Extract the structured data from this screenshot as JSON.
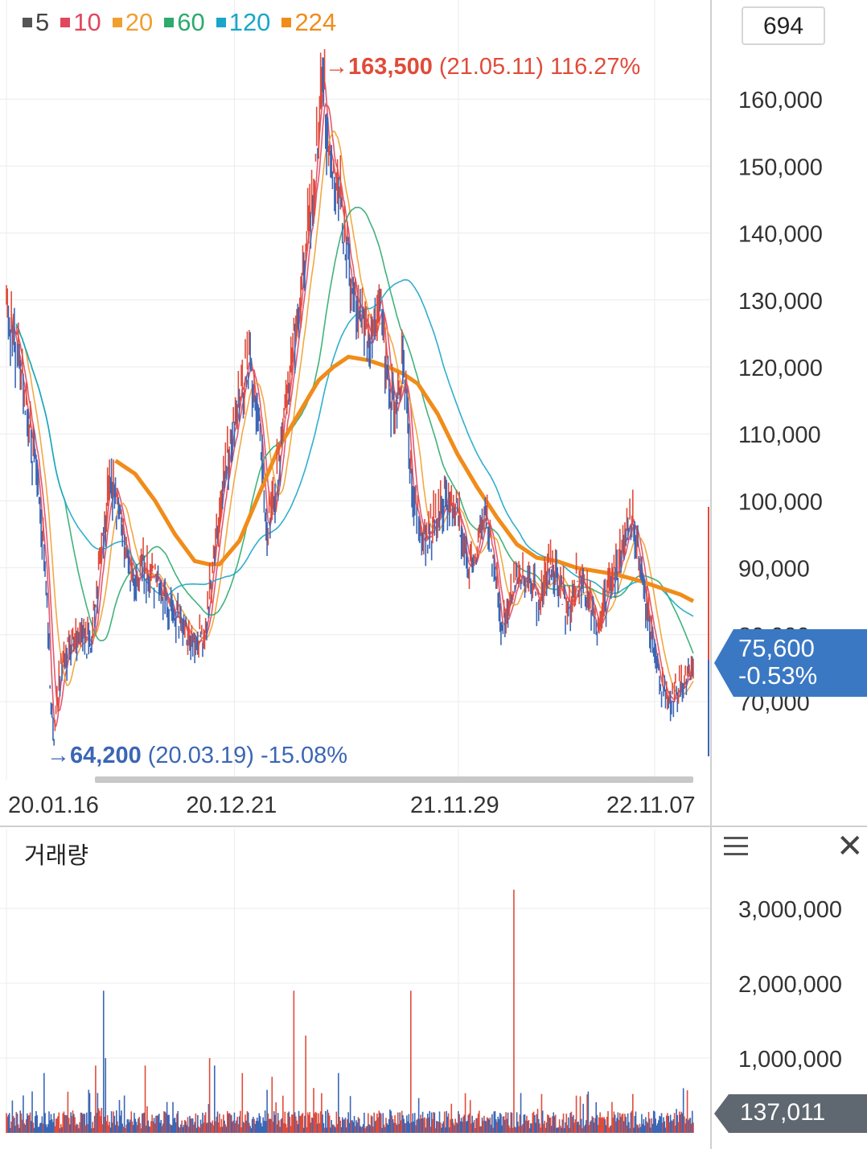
{
  "legend": [
    {
      "label": "5",
      "color": "#555555"
    },
    {
      "label": "10",
      "color": "#e0475e"
    },
    {
      "label": "20",
      "color": "#f0a030"
    },
    {
      "label": "60",
      "color": "#2daa6e"
    },
    {
      "label": "120",
      "color": "#1aa6c8"
    },
    {
      "label": "224",
      "color": "#f08c1a"
    }
  ],
  "period_count": "694",
  "high_marker": {
    "price": "163,500",
    "date": "(21.05.11)",
    "pct": "116.27%"
  },
  "low_marker": {
    "price": "64,200",
    "date": "(20.03.19)",
    "pct": "-15.08%"
  },
  "current_price": {
    "value": "75,600",
    "change": "-0.53%"
  },
  "volume_title": "거래량",
  "current_volume": "137,011",
  "chart_data": [
    {
      "type": "line",
      "title": "",
      "x_axis_ticks": [
        "20.01.16",
        "20.12.21",
        "21.11.29",
        "22.11.07"
      ],
      "x_tick_index": [
        0,
        230,
        456,
        654
      ],
      "n_sessions": 694,
      "y_ticks": [
        70000,
        80000,
        90000,
        100000,
        110000,
        120000,
        130000,
        140000,
        150000,
        160000
      ],
      "y_tick_labels": [
        "70,000",
        "80,000",
        "90,000",
        "100,000",
        "110,000",
        "120,000",
        "130,000",
        "140,000",
        "150,000",
        "160,000"
      ],
      "ylim": [
        57000,
        172000
      ],
      "grid": true,
      "legend_position": "top-left",
      "price_keypoints": [
        [
          0,
          130000
        ],
        [
          15,
          119000
        ],
        [
          30,
          104000
        ],
        [
          40,
          88000
        ],
        [
          44,
          72000
        ],
        [
          48,
          64200
        ],
        [
          55,
          76000
        ],
        [
          70,
          80000
        ],
        [
          85,
          78000
        ],
        [
          95,
          92000
        ],
        [
          105,
          103000
        ],
        [
          115,
          98000
        ],
        [
          125,
          88000
        ],
        [
          140,
          90000
        ],
        [
          160,
          86000
        ],
        [
          175,
          82000
        ],
        [
          190,
          78000
        ],
        [
          200,
          80000
        ],
        [
          210,
          92000
        ],
        [
          220,
          103000
        ],
        [
          235,
          115000
        ],
        [
          245,
          122000
        ],
        [
          255,
          112000
        ],
        [
          262,
          96000
        ],
        [
          270,
          100000
        ],
        [
          280,
          113000
        ],
        [
          288,
          121000
        ],
        [
          296,
          130000
        ],
        [
          302,
          138000
        ],
        [
          310,
          146000
        ],
        [
          318,
          163500
        ],
        [
          326,
          153000
        ],
        [
          336,
          146000
        ],
        [
          346,
          134000
        ],
        [
          356,
          128000
        ],
        [
          366,
          123000
        ],
        [
          376,
          131000
        ],
        [
          386,
          116000
        ],
        [
          394,
          113000
        ],
        [
          400,
          121000
        ],
        [
          410,
          100000
        ],
        [
          420,
          93000
        ],
        [
          432,
          97000
        ],
        [
          446,
          101000
        ],
        [
          456,
          97000
        ],
        [
          466,
          89000
        ],
        [
          476,
          94000
        ],
        [
          484,
          97000
        ],
        [
          492,
          91000
        ],
        [
          500,
          81000
        ],
        [
          508,
          86000
        ],
        [
          518,
          90000
        ],
        [
          528,
          88000
        ],
        [
          538,
          85000
        ],
        [
          546,
          90000
        ],
        [
          556,
          88000
        ],
        [
          566,
          84000
        ],
        [
          576,
          88000
        ],
        [
          586,
          87000
        ],
        [
          596,
          80000
        ],
        [
          606,
          86000
        ],
        [
          616,
          90000
        ],
        [
          624,
          94000
        ],
        [
          632,
          99000
        ],
        [
          640,
          89000
        ],
        [
          650,
          80000
        ],
        [
          660,
          72000
        ],
        [
          668,
          70000
        ],
        [
          676,
          71500
        ],
        [
          684,
          72500
        ],
        [
          693,
          75600
        ]
      ],
      "ma224_keypoints": [
        [
          110,
          106000
        ],
        [
          130,
          104000
        ],
        [
          150,
          100000
        ],
        [
          170,
          95000
        ],
        [
          190,
          91000
        ],
        [
          205,
          90500
        ],
        [
          215,
          90500
        ],
        [
          235,
          94000
        ],
        [
          255,
          101000
        ],
        [
          275,
          108000
        ],
        [
          295,
          113000
        ],
        [
          315,
          118000
        ],
        [
          330,
          120000
        ],
        [
          345,
          121500
        ],
        [
          365,
          121000
        ],
        [
          385,
          120000
        ],
        [
          400,
          119000
        ],
        [
          415,
          117500
        ],
        [
          435,
          113000
        ],
        [
          455,
          107000
        ],
        [
          475,
          102000
        ],
        [
          495,
          97500
        ],
        [
          515,
          93500
        ],
        [
          535,
          91500
        ],
        [
          555,
          91000
        ],
        [
          575,
          90000
        ],
        [
          595,
          89500
        ],
        [
          615,
          89000
        ],
        [
          640,
          88000
        ],
        [
          660,
          87000
        ],
        [
          680,
          86000
        ],
        [
          693,
          85000
        ]
      ],
      "series": [
        {
          "name": "5"
        },
        {
          "name": "10"
        },
        {
          "name": "20"
        },
        {
          "name": "60"
        },
        {
          "name": "120"
        },
        {
          "name": "224"
        }
      ]
    },
    {
      "type": "bar",
      "title": "거래량",
      "y_ticks": [
        1000000,
        2000000,
        3000000
      ],
      "y_tick_labels": [
        "1,000,000",
        "2,000,000",
        "3,000,000"
      ],
      "ylim": [
        0,
        3300000
      ],
      "typical_volume": 200000,
      "spikes": [
        [
          38,
          800000
        ],
        [
          62,
          550000
        ],
        [
          90,
          900000
        ],
        [
          98,
          1900000
        ],
        [
          100,
          1000000
        ],
        [
          140,
          900000
        ],
        [
          205,
          1000000
        ],
        [
          210,
          900000
        ],
        [
          238,
          800000
        ],
        [
          268,
          750000
        ],
        [
          290,
          1900000
        ],
        [
          302,
          1300000
        ],
        [
          310,
          600000
        ],
        [
          335,
          800000
        ],
        [
          408,
          1900000
        ],
        [
          512,
          3250000
        ],
        [
          540,
          520000
        ],
        [
          632,
          520000
        ],
        [
          676,
          320000
        ]
      ],
      "current": 137011
    }
  ]
}
